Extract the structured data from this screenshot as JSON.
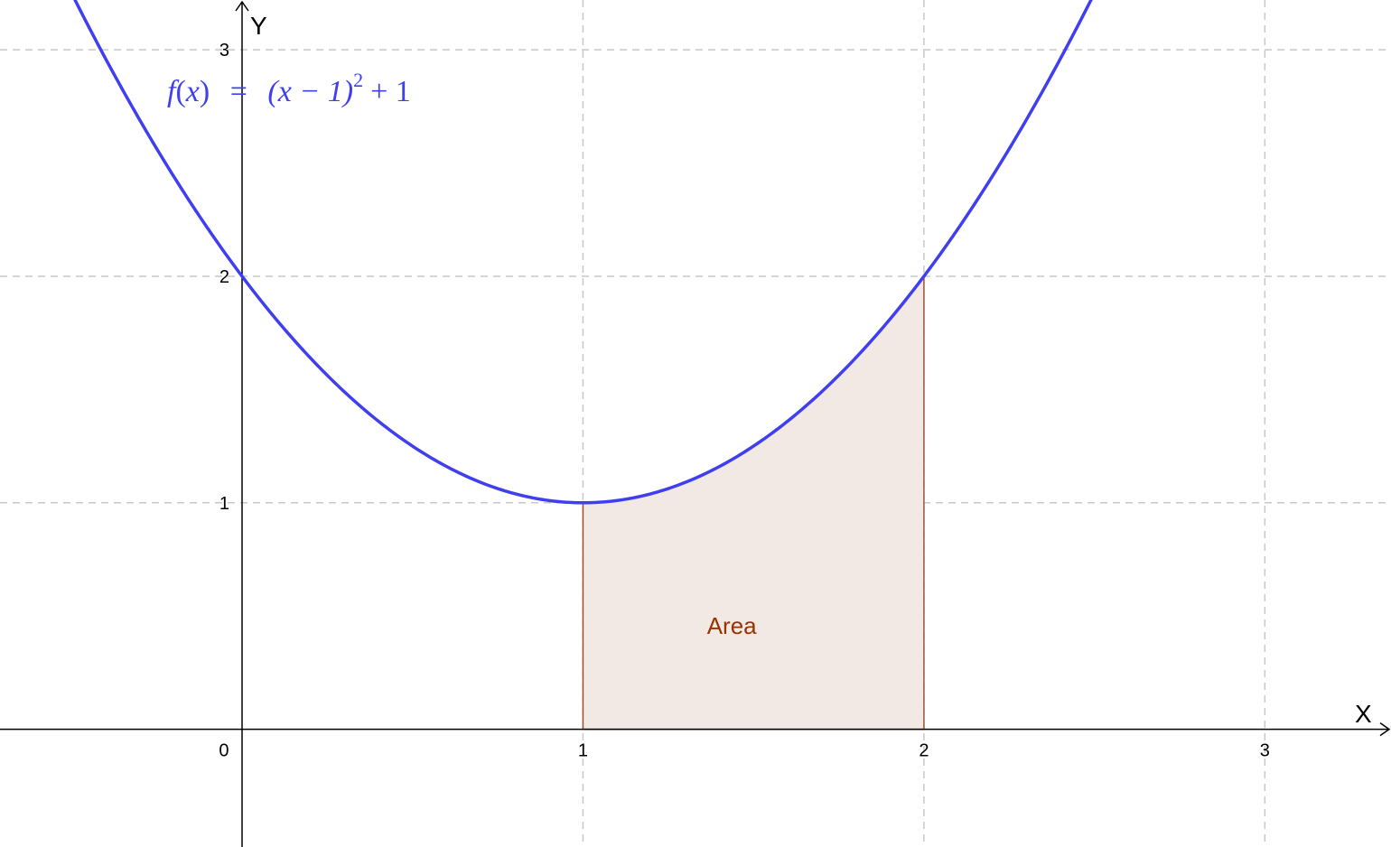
{
  "chart_data": {
    "type": "line",
    "title": "",
    "xlabel": "X",
    "ylabel": "Y",
    "xlim": [
      -0.71,
      3.37
    ],
    "ylim": [
      -0.52,
      3.22
    ],
    "grid": true,
    "x_ticks": [
      "0",
      "1",
      "2",
      "3"
    ],
    "y_ticks": [
      "1",
      "2",
      "3"
    ],
    "series": [
      {
        "name": "f(x) = (x − 1)² + 1",
        "expression": "(x-1)^2+1",
        "color": "#3f3ff0",
        "x": [
          -0.5,
          -0.25,
          0,
          0.25,
          0.5,
          0.75,
          1,
          1.25,
          1.5,
          1.75,
          2,
          2.25,
          2.5
        ],
        "y": [
          3.25,
          2.5625,
          2,
          1.5625,
          1.25,
          1.0625,
          1,
          1.0625,
          1.25,
          1.5625,
          2,
          2.5625,
          3.25
        ]
      }
    ],
    "shaded_region": {
      "label": "Area",
      "from_x": 1,
      "to_x": 2,
      "fill_color": "#f2e8e4",
      "stroke_color": "#a0522d",
      "label_color": "#993300"
    },
    "annotations": {
      "formula": {
        "f": "f",
        "open": "(",
        "x": "x",
        "close": ")",
        "eq": "=",
        "lhs_inner": "(x − 1)",
        "exp": "2",
        "tail": "+ 1",
        "color": "#3f3ff0"
      }
    }
  }
}
